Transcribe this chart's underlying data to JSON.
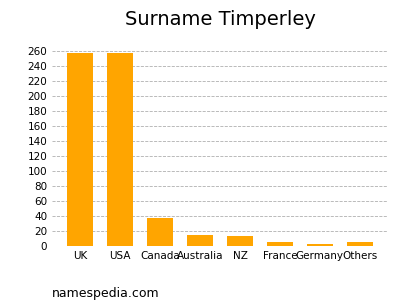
{
  "title": "Surname Timperley",
  "categories": [
    "UK",
    "USA",
    "Canada",
    "Australia",
    "NZ",
    "France",
    "Germany",
    "Others"
  ],
  "values": [
    258,
    258,
    38,
    15,
    14,
    5,
    3,
    5
  ],
  "bar_color": "#FFA500",
  "background_color": "#ffffff",
  "ylim": [
    0,
    280
  ],
  "yticks": [
    0,
    20,
    40,
    60,
    80,
    100,
    120,
    140,
    160,
    180,
    200,
    220,
    240,
    260
  ],
  "grid_color": "#b0b0b0",
  "title_fontsize": 14,
  "tick_fontsize": 7.5,
  "watermark": "namespedia.com",
  "watermark_fontsize": 9
}
